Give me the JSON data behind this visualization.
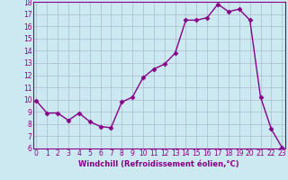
{
  "x": [
    0,
    1,
    2,
    3,
    4,
    5,
    6,
    7,
    8,
    9,
    10,
    11,
    12,
    13,
    14,
    15,
    16,
    17,
    18,
    19,
    20,
    21,
    22,
    23
  ],
  "y": [
    9.9,
    8.9,
    8.9,
    8.3,
    8.9,
    8.2,
    7.8,
    7.7,
    9.8,
    10.2,
    11.8,
    12.5,
    12.9,
    13.8,
    16.5,
    16.5,
    16.7,
    17.8,
    17.2,
    17.4,
    16.5,
    10.2,
    7.6,
    6.1
  ],
  "ylim": [
    6,
    18
  ],
  "xlim": [
    -0.3,
    23.3
  ],
  "yticks": [
    6,
    7,
    8,
    9,
    10,
    11,
    12,
    13,
    14,
    15,
    16,
    17,
    18
  ],
  "xticks": [
    0,
    1,
    2,
    3,
    4,
    5,
    6,
    7,
    8,
    9,
    10,
    11,
    12,
    13,
    14,
    15,
    16,
    17,
    18,
    19,
    20,
    21,
    22,
    23
  ],
  "xlabel": "Windchill (Refroidissement éolien,°C)",
  "line_color": "#880088",
  "marker_color": "#880088",
  "bg_color": "#cce8f0",
  "grid_color": "#aabbcc",
  "axis_label_color": "#880088",
  "tick_label_color": "#880088",
  "spine_color": "#880088",
  "tick_fontsize": 5.5,
  "xlabel_fontsize": 6.0,
  "linewidth": 1.0,
  "markersize": 2.5
}
